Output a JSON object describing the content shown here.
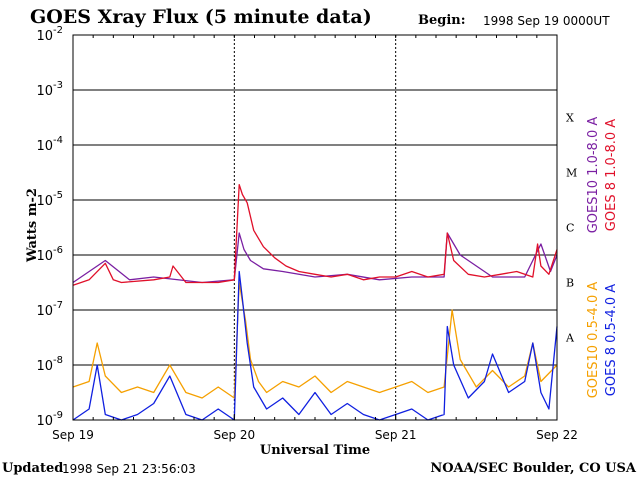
{
  "header": {
    "title": "GOES Xray Flux (5 minute data)",
    "begin_label": "Begin:",
    "begin_value": "1998 Sep 19 0000UT"
  },
  "footer": {
    "updated_label": "Updated",
    "updated_value": "1998 Sep 21 23:56:03",
    "credit": "NOAA/SEC Boulder, CO USA"
  },
  "chart_data": {
    "type": "line",
    "title": "GOES Xray Flux (5 minute data)",
    "xlabel": "Universal Time",
    "ylabel": "Watts m-2",
    "y_scale": "log",
    "ylim_exponent": [
      -9,
      -2
    ],
    "y_ticks": [
      {
        "base": "10",
        "exp": "-2"
      },
      {
        "base": "10",
        "exp": "-3"
      },
      {
        "base": "10",
        "exp": "-4"
      },
      {
        "base": "10",
        "exp": "-5"
      },
      {
        "base": "10",
        "exp": "-6"
      },
      {
        "base": "10",
        "exp": "-7"
      },
      {
        "base": "10",
        "exp": "-8"
      },
      {
        "base": "10",
        "exp": "-9"
      }
    ],
    "x_ticks": [
      "Sep 19",
      "Sep 20",
      "Sep 21",
      "Sep 22"
    ],
    "x_day_range": [
      0,
      3
    ],
    "flare_classes": [
      {
        "label": "X",
        "exp": -4
      },
      {
        "label": "M",
        "exp": -5
      },
      {
        "label": "C",
        "exp": -6
      },
      {
        "label": "B",
        "exp": -7
      },
      {
        "label": "A",
        "exp": -8
      }
    ],
    "grid": true,
    "legend_position": "right, vertical",
    "series": [
      {
        "name": "GOES10 1.0-8.0 A",
        "color": "#7a1fa2",
        "day": [
          0,
          0.2,
          0.35,
          0.5,
          0.8,
          1.0,
          1.03,
          1.06,
          1.1,
          1.18,
          1.3,
          1.5,
          1.7,
          1.9,
          2.1,
          2.3,
          2.32,
          2.4,
          2.6,
          2.8,
          2.9,
          2.96,
          3.0
        ],
        "log10_flux": [
          -6.5,
          -6.1,
          -6.45,
          -6.4,
          -6.5,
          -6.45,
          -5.6,
          -5.9,
          -6.1,
          -6.25,
          -6.3,
          -6.4,
          -6.35,
          -6.45,
          -6.4,
          -6.4,
          -5.6,
          -6.0,
          -6.4,
          -6.4,
          -5.8,
          -6.3,
          -6.0
        ]
      },
      {
        "name": "GOES 8 1.0-8.0 A",
        "color": "#e0102a",
        "day": [
          0,
          0.05,
          0.1,
          0.2,
          0.25,
          0.3,
          0.5,
          0.6,
          0.62,
          0.7,
          0.9,
          1.0,
          1.03,
          1.05,
          1.08,
          1.12,
          1.18,
          1.25,
          1.32,
          1.4,
          1.5,
          1.6,
          1.7,
          1.8,
          1.9,
          2.0,
          2.1,
          2.2,
          2.3,
          2.32,
          2.36,
          2.45,
          2.55,
          2.65,
          2.75,
          2.85,
          2.88,
          2.9,
          2.95,
          3.0
        ],
        "log10_flux": [
          -6.55,
          -6.5,
          -6.45,
          -6.15,
          -6.45,
          -6.5,
          -6.45,
          -6.4,
          -6.2,
          -6.5,
          -6.5,
          -6.45,
          -4.72,
          -4.9,
          -5.05,
          -5.55,
          -5.85,
          -6.05,
          -6.2,
          -6.3,
          -6.35,
          -6.4,
          -6.35,
          -6.45,
          -6.4,
          -6.4,
          -6.3,
          -6.4,
          -6.35,
          -5.6,
          -6.1,
          -6.35,
          -6.4,
          -6.35,
          -6.3,
          -6.4,
          -5.8,
          -6.2,
          -6.35,
          -5.9
        ]
      },
      {
        "name": "GOES10 0.5-4.0 A",
        "color": "#f5a000",
        "day": [
          0,
          0.1,
          0.15,
          0.2,
          0.3,
          0.4,
          0.5,
          0.6,
          0.7,
          0.8,
          0.9,
          1.0,
          1.03,
          1.07,
          1.1,
          1.15,
          1.2,
          1.3,
          1.4,
          1.5,
          1.6,
          1.7,
          1.8,
          1.9,
          2.0,
          2.1,
          2.2,
          2.3,
          2.35,
          2.4,
          2.5,
          2.6,
          2.7,
          2.8,
          2.85,
          2.9,
          3.0
        ],
        "log10_flux": [
          -8.4,
          -8.3,
          -7.6,
          -8.2,
          -8.5,
          -8.4,
          -8.5,
          -8.0,
          -8.5,
          -8.6,
          -8.4,
          -8.6,
          -6.5,
          -7.2,
          -7.9,
          -8.3,
          -8.5,
          -8.3,
          -8.4,
          -8.2,
          -8.5,
          -8.3,
          -8.4,
          -8.5,
          -8.4,
          -8.3,
          -8.5,
          -8.4,
          -7.0,
          -7.9,
          -8.4,
          -8.1,
          -8.4,
          -8.2,
          -7.6,
          -8.3,
          -8.0
        ]
      },
      {
        "name": "GOES 8 0.5-4.0 A",
        "color": "#1020e0",
        "day": [
          0,
          0.1,
          0.15,
          0.2,
          0.3,
          0.4,
          0.5,
          0.6,
          0.7,
          0.8,
          0.9,
          1.0,
          1.03,
          1.05,
          1.08,
          1.12,
          1.2,
          1.3,
          1.4,
          1.5,
          1.6,
          1.7,
          1.8,
          1.9,
          2.0,
          2.1,
          2.2,
          2.3,
          2.32,
          2.36,
          2.45,
          2.55,
          2.6,
          2.7,
          2.8,
          2.85,
          2.9,
          2.95,
          3.0
        ],
        "log10_flux": [
          -9.0,
          -8.8,
          -8.0,
          -8.9,
          -9.0,
          -8.9,
          -8.7,
          -8.2,
          -8.9,
          -9.0,
          -8.8,
          -9.0,
          -6.3,
          -6.8,
          -7.6,
          -8.4,
          -8.8,
          -8.6,
          -8.9,
          -8.5,
          -8.9,
          -8.7,
          -8.9,
          -9.0,
          -8.9,
          -8.8,
          -9.0,
          -8.9,
          -7.3,
          -8.0,
          -8.6,
          -8.3,
          -7.8,
          -8.5,
          -8.3,
          -7.6,
          -8.5,
          -8.8,
          -7.3
        ]
      }
    ]
  }
}
